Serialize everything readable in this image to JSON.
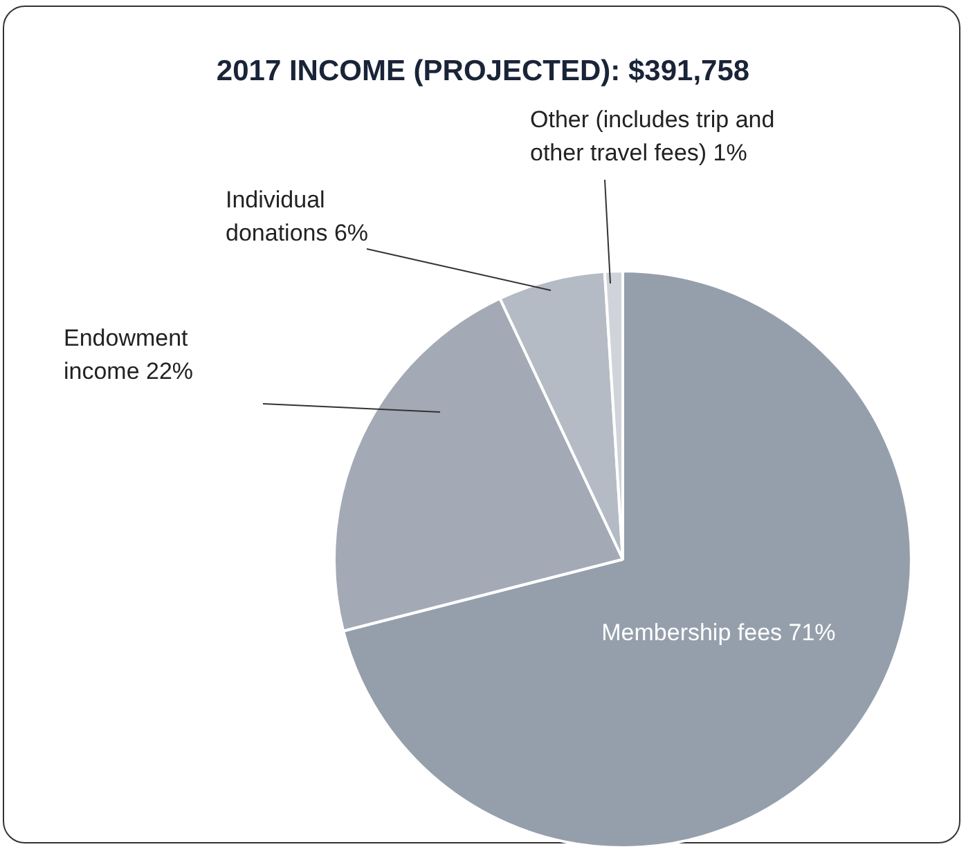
{
  "chart_data": {
    "type": "pie",
    "title": "2017 INCOME (PROJECTED): $391,758",
    "categories": [
      "Membership fees",
      "Endowment income",
      "Individual donations",
      "Other (includes trip and other travel fees)"
    ],
    "values": [
      71,
      22,
      6,
      1
    ],
    "value_labels": [
      "71%",
      "22%",
      "6%",
      "1%"
    ],
    "colors": [
      "#959fac",
      "#a3aab5",
      "#b5bbc4",
      "#d0d4da"
    ],
    "legend": false
  }
}
